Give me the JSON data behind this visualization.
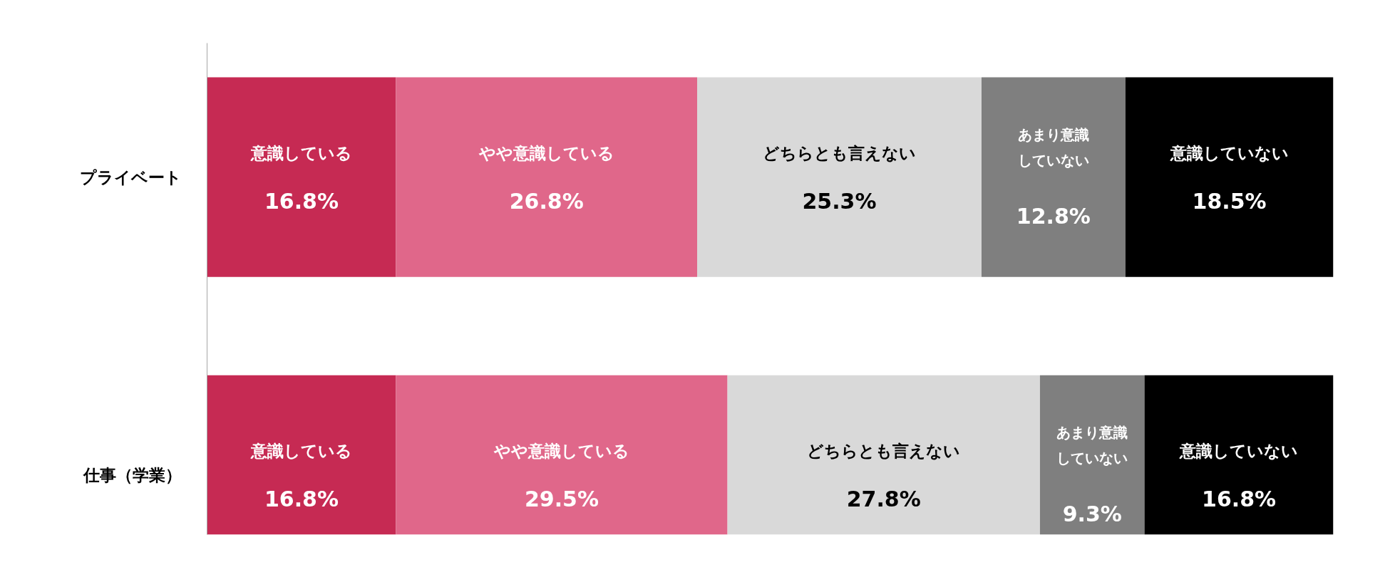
{
  "chart_data": {
    "type": "bar",
    "orientation": "horizontal",
    "stacked": true,
    "categories": [
      "プライベート",
      "仕事（学業）"
    ],
    "series": [
      {
        "name": "意識している",
        "color": "#c62a53",
        "values": [
          16.8,
          16.8
        ],
        "value_labels": [
          "16.8%",
          "16.8%"
        ]
      },
      {
        "name": "やや意識している",
        "color": "#e0678a",
        "values": [
          26.8,
          29.5
        ],
        "value_labels": [
          "26.8%",
          "29.5%"
        ]
      },
      {
        "name": "どちらとも言えない",
        "color": "#d9d9d9",
        "values": [
          25.3,
          27.8
        ],
        "value_labels": [
          "25.3%",
          "27.8%"
        ]
      },
      {
        "name": "あまり意識していない",
        "color": "#7f7f7f",
        "values": [
          12.8,
          9.3
        ],
        "value_labels": [
          "12.8%",
          "9.3%"
        ]
      },
      {
        "name": "意識していない",
        "color": "#000000",
        "values": [
          18.5,
          16.8
        ],
        "value_labels": [
          "18.5%",
          "16.8%"
        ]
      }
    ],
    "tick_labels": "y"
  }
}
